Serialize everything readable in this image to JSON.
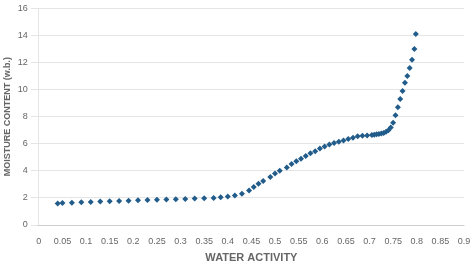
{
  "chart_data": {
    "type": "scatter",
    "x": [
      0.04,
      0.05,
      0.07,
      0.09,
      0.11,
      0.13,
      0.15,
      0.17,
      0.19,
      0.21,
      0.23,
      0.25,
      0.27,
      0.29,
      0.31,
      0.33,
      0.35,
      0.37,
      0.385,
      0.4,
      0.415,
      0.43,
      0.445,
      0.455,
      0.465,
      0.475,
      0.49,
      0.5,
      0.51,
      0.525,
      0.535,
      0.545,
      0.555,
      0.565,
      0.575,
      0.585,
      0.595,
      0.605,
      0.615,
      0.625,
      0.635,
      0.645,
      0.655,
      0.665,
      0.675,
      0.685,
      0.695,
      0.705,
      0.71,
      0.715,
      0.72,
      0.725,
      0.73,
      0.735,
      0.74,
      0.745,
      0.75,
      0.755,
      0.76,
      0.765,
      0.77,
      0.775,
      0.78,
      0.785,
      0.79,
      0.795,
      0.798
    ],
    "values": [
      1.58,
      1.62,
      1.65,
      1.68,
      1.7,
      1.73,
      1.76,
      1.78,
      1.8,
      1.83,
      1.85,
      1.87,
      1.88,
      1.9,
      1.92,
      1.95,
      1.97,
      2.0,
      2.05,
      2.1,
      2.18,
      2.3,
      2.55,
      2.8,
      3.05,
      3.25,
      3.55,
      3.8,
      4.0,
      4.25,
      4.5,
      4.7,
      4.9,
      5.1,
      5.3,
      5.45,
      5.65,
      5.8,
      5.95,
      6.05,
      6.15,
      6.25,
      6.35,
      6.45,
      6.55,
      6.6,
      6.62,
      6.65,
      6.67,
      6.7,
      6.72,
      6.75,
      6.8,
      6.88,
      7.0,
      7.2,
      7.55,
      8.1,
      8.7,
      9.3,
      9.9,
      10.5,
      11.0,
      11.6,
      12.2,
      13.0,
      14.1
    ],
    "marker": "diamond",
    "color": "#215C8A",
    "x_label": "WATER ACTIVITY",
    "y_label": "MOISTURE CONTENT (w.b.)",
    "xlim": [
      0,
      0.9
    ],
    "ylim": [
      0,
      16
    ],
    "xticks": [
      0,
      0.05,
      0.1,
      0.15,
      0.2,
      0.25,
      0.3,
      0.35,
      0.4,
      0.45,
      0.5,
      0.55,
      0.6,
      0.65,
      0.7,
      0.75,
      0.8,
      0.85,
      0.9
    ],
    "yticks": [
      0,
      2,
      4,
      6,
      8,
      10,
      12,
      14,
      16
    ],
    "grid": "y"
  }
}
